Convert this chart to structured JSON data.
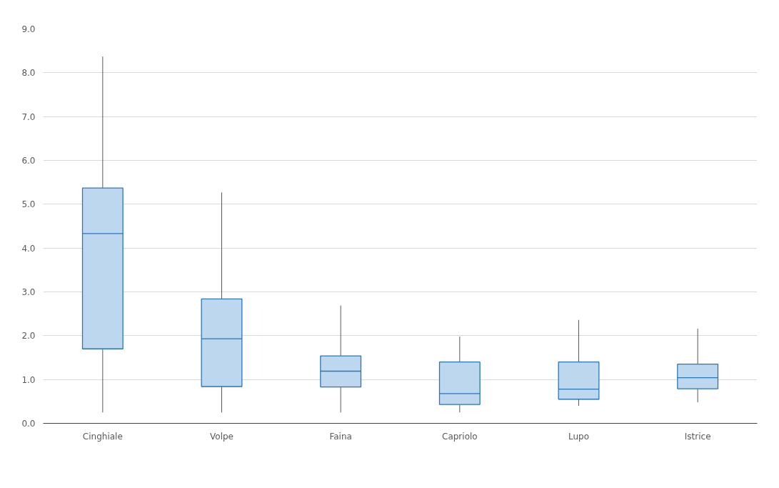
{
  "chart_data": {
    "type": "box",
    "categories": [
      "Cinghiale",
      "Volpe",
      "Faina",
      "Capriolo",
      "Lupo",
      "Istrice"
    ],
    "boxes": [
      {
        "low": 0.25,
        "q1": 1.7,
        "median": 4.33,
        "q3": 5.37,
        "high": 8.37
      },
      {
        "low": 0.25,
        "q1": 0.84,
        "median": 1.93,
        "q3": 2.84,
        "high": 5.27
      },
      {
        "low": 0.25,
        "q1": 0.83,
        "median": 1.19,
        "q3": 1.54,
        "high": 2.69
      },
      {
        "low": 0.25,
        "q1": 0.43,
        "median": 0.68,
        "q3": 1.4,
        "high": 1.98
      },
      {
        "low": 0.4,
        "q1": 0.55,
        "median": 0.78,
        "q3": 1.4,
        "high": 2.36
      },
      {
        "low": 0.48,
        "q1": 0.79,
        "median": 1.04,
        "q3": 1.35,
        "high": 2.16
      }
    ],
    "color": "#bdd7ee",
    "ylim": [
      0,
      9
    ],
    "yticks": [
      {
        "value": 0,
        "label": "0.0"
      },
      {
        "value": 1,
        "label": "1.0"
      },
      {
        "value": 2,
        "label": "2.0"
      },
      {
        "value": 3,
        "label": "3.0"
      },
      {
        "value": 4,
        "label": "4.0"
      },
      {
        "value": 5,
        "label": "5.0"
      },
      {
        "value": 6,
        "label": "6.0"
      },
      {
        "value": 7,
        "label": "7.0"
      },
      {
        "value": 8,
        "label": "8.0"
      },
      {
        "value": 9,
        "label": "9.0"
      }
    ],
    "grid": "y"
  }
}
